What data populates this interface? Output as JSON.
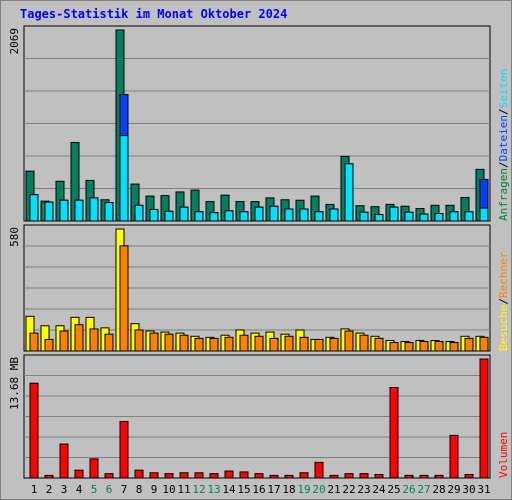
{
  "title": "Tages-Statistik im Monat Oktober 2024",
  "chart_data": [
    {
      "type": "bar",
      "panel": "top",
      "ymax_label": "2069",
      "ylim": [
        0,
        2069
      ],
      "legend": [
        {
          "label": "Anfragen",
          "color": "#008040"
        },
        {
          "label": "Dateien",
          "color": "#0040ff"
        },
        {
          "label": "Seiten",
          "color": "#00e0ff"
        }
      ],
      "categories": [
        "1",
        "2",
        "3",
        "4",
        "5",
        "6",
        "7",
        "8",
        "9",
        "10",
        "11",
        "12",
        "13",
        "14",
        "15",
        "16",
        "17",
        "18",
        "19",
        "20",
        "21",
        "22",
        "23",
        "24",
        "25",
        "26",
        "27",
        "28",
        "29",
        "30",
        "31"
      ],
      "series": [
        {
          "name": "Anfragen",
          "color": "#008060",
          "values": [
            540,
            215,
            430,
            850,
            440,
            230,
            2069,
            400,
            270,
            275,
            315,
            335,
            210,
            280,
            210,
            210,
            250,
            230,
            225,
            270,
            180,
            700,
            165,
            155,
            180,
            160,
            135,
            170,
            170,
            255,
            560
          ]
        },
        {
          "name": "Dateien",
          "color": "#0040ff",
          "values": [
            285,
            205,
            225,
            225,
            250,
            200,
            1370,
            170,
            125,
            105,
            150,
            100,
            90,
            110,
            100,
            150,
            160,
            130,
            130,
            100,
            130,
            620,
            95,
            70,
            150,
            95,
            75,
            80,
            100,
            100,
            450
          ]
        },
        {
          "name": "Seiten",
          "color": "#00e0ff",
          "values": [
            285,
            205,
            225,
            225,
            250,
            200,
            925,
            170,
            125,
            105,
            150,
            100,
            90,
            110,
            100,
            150,
            160,
            130,
            130,
            100,
            130,
            620,
            95,
            70,
            150,
            95,
            75,
            80,
            100,
            100,
            140
          ]
        }
      ]
    },
    {
      "type": "bar",
      "panel": "middle",
      "ymax_label": "580",
      "ylim": [
        0,
        580
      ],
      "legend": [
        {
          "label": "Besuche",
          "color": "#ffff00"
        },
        {
          "label": "Rechner",
          "color": "#ff8000"
        }
      ],
      "categories": [
        "1",
        "2",
        "3",
        "4",
        "5",
        "6",
        "7",
        "8",
        "9",
        "10",
        "11",
        "12",
        "13",
        "14",
        "15",
        "16",
        "17",
        "18",
        "19",
        "20",
        "21",
        "22",
        "23",
        "24",
        "25",
        "26",
        "27",
        "28",
        "29",
        "30",
        "31"
      ],
      "series": [
        {
          "name": "Besuche",
          "color": "#ffff00",
          "values": [
            165,
            120,
            120,
            160,
            160,
            110,
            580,
            130,
            95,
            90,
            85,
            70,
            65,
            75,
            100,
            85,
            90,
            80,
            100,
            55,
            65,
            105,
            85,
            70,
            50,
            45,
            50,
            50,
            45,
            70,
            70
          ]
        },
        {
          "name": "Rechner",
          "color": "#ff8000",
          "values": [
            85,
            55,
            95,
            125,
            105,
            80,
            500,
            100,
            85,
            80,
            75,
            60,
            60,
            65,
            75,
            70,
            60,
            70,
            65,
            55,
            60,
            95,
            75,
            60,
            40,
            40,
            45,
            45,
            40,
            60,
            65
          ]
        }
      ]
    },
    {
      "type": "bar",
      "panel": "bottom",
      "ymax_label": "13.68 MB",
      "ylim": [
        0,
        13.68
      ],
      "legend": [
        {
          "label": "Volumen",
          "color": "#ff0000"
        }
      ],
      "categories": [
        "1",
        "2",
        "3",
        "4",
        "5",
        "6",
        "7",
        "8",
        "9",
        "10",
        "11",
        "12",
        "13",
        "14",
        "15",
        "16",
        "17",
        "18",
        "19",
        "20",
        "21",
        "22",
        "23",
        "24",
        "25",
        "26",
        "27",
        "28",
        "29",
        "30",
        "31"
      ],
      "series": [
        {
          "name": "Volumen",
          "color": "#ff0000",
          "values": [
            10.9,
            0.3,
            3.9,
            0.9,
            2.2,
            0.5,
            6.5,
            0.9,
            0.6,
            0.5,
            0.6,
            0.6,
            0.5,
            0.8,
            0.7,
            0.5,
            0.3,
            0.3,
            0.6,
            1.8,
            0.3,
            0.5,
            0.5,
            0.4,
            10.4,
            0.3,
            0.3,
            0.3,
            4.9,
            0.4,
            13.68
          ]
        }
      ]
    }
  ],
  "weekend_days": [
    "5",
    "6",
    "12",
    "13",
    "19",
    "20",
    "26",
    "27"
  ],
  "day_label_color": "#000000",
  "weekend_label_color": "#00805c"
}
